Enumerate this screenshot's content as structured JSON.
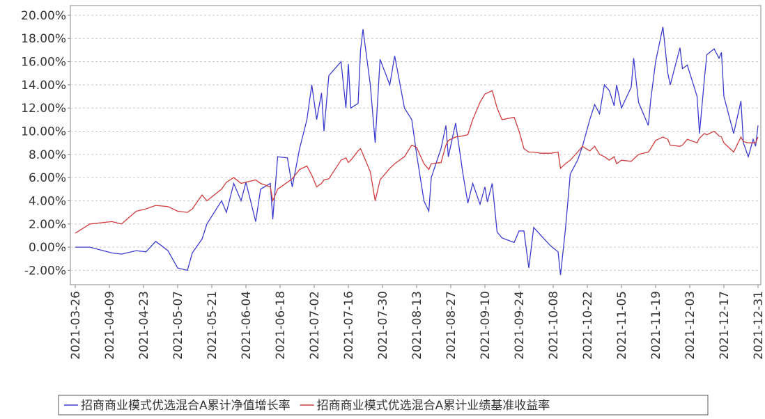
{
  "chart_data": {
    "type": "line",
    "x": [
      "2021-03-26",
      "2021-04-01",
      "2021-04-10",
      "2021-04-14",
      "2021-04-20",
      "2021-04-24",
      "2021-04-28",
      "2021-05-03",
      "2021-05-07",
      "2021-05-11",
      "2021-05-13",
      "2021-05-17",
      "2021-05-19",
      "2021-05-25",
      "2021-05-27",
      "2021-05-30",
      "2021-06-02",
      "2021-06-04",
      "2021-06-08",
      "2021-06-10",
      "2021-06-14",
      "2021-06-15",
      "2021-06-17",
      "2021-06-21",
      "2021-06-23",
      "2021-06-26",
      "2021-06-29",
      "2021-07-01",
      "2021-07-03",
      "2021-07-05",
      "2021-07-06",
      "2021-07-08",
      "2021-07-13",
      "2021-07-15",
      "2021-07-16",
      "2021-07-17",
      "2021-07-20",
      "2021-07-21",
      "2021-07-22",
      "2021-07-25",
      "2021-07-27",
      "2021-07-29",
      "2021-08-02",
      "2021-08-04",
      "2021-08-08",
      "2021-08-11",
      "2021-08-13",
      "2021-08-16",
      "2021-08-18",
      "2021-08-19",
      "2021-08-23",
      "2021-08-25",
      "2021-08-26",
      "2021-08-29",
      "2021-09-01",
      "2021-09-03",
      "2021-09-05",
      "2021-09-08",
      "2021-09-10",
      "2021-09-11",
      "2021-09-13",
      "2021-09-15",
      "2021-09-17",
      "2021-09-22",
      "2021-09-24",
      "2021-09-26",
      "2021-09-28",
      "2021-09-30",
      "2021-10-03",
      "2021-10-07",
      "2021-10-10",
      "2021-10-11",
      "2021-10-13",
      "2021-10-15",
      "2021-10-18",
      "2021-10-20",
      "2021-10-23",
      "2021-10-25",
      "2021-10-27",
      "2021-10-29",
      "2021-10-31",
      "2021-11-02",
      "2021-11-03",
      "2021-11-05",
      "2021-11-09",
      "2021-11-10",
      "2021-11-12",
      "2021-11-16",
      "2021-11-17",
      "2021-11-19",
      "2021-11-22",
      "2021-11-24",
      "2021-11-25",
      "2021-11-29",
      "2021-11-30",
      "2021-12-02",
      "2021-12-06",
      "2021-12-07",
      "2021-12-09",
      "2021-12-10",
      "2021-12-13",
      "2021-12-15",
      "2021-12-16",
      "2021-12-17",
      "2021-12-21",
      "2021-12-24",
      "2021-12-25",
      "2021-12-27",
      "2021-12-29",
      "2021-12-30",
      "2021-12-31"
    ],
    "series": [
      {
        "name": "招商商业模式优选混合A累计净值增长率",
        "color": "#3b3bd0",
        "values": [
          0,
          0,
          -0.5,
          -0.6,
          -0.3,
          -0.4,
          0.5,
          -0.3,
          -1.8,
          -2.0,
          -0.5,
          0.7,
          2.0,
          4.0,
          3.0,
          5.5,
          4.0,
          5.6,
          2.2,
          5.0,
          5.5,
          2.4,
          7.8,
          7.7,
          5.2,
          8.5,
          11,
          14,
          11,
          13.3,
          10,
          14.8,
          16,
          12,
          15.8,
          12,
          12.4,
          17,
          18.8,
          14,
          9,
          16.2,
          14,
          16.5,
          12,
          11,
          8,
          4,
          3.1,
          6,
          8.5,
          10.5,
          7.8,
          10.7,
          6.3,
          3.8,
          5.5,
          3.7,
          5.2,
          3.9,
          5.5,
          1.3,
          0.8,
          0.4,
          1.4,
          1.4,
          -1.8,
          1.7,
          1.0,
          0.1,
          -0.4,
          -2.4,
          1.5,
          6.3,
          7.5,
          8.7,
          11,
          12.3,
          11.5,
          14,
          13.5,
          12.2,
          14,
          12,
          13.8,
          16.3,
          12.5,
          10.5,
          12.7,
          16,
          19,
          15,
          14,
          17.2,
          15.4,
          15.7,
          13,
          9.8,
          14.5,
          16.6,
          17.1,
          16.3,
          16.8,
          13,
          9.8,
          12.6,
          9,
          7.8,
          9.3,
          8.7,
          10.5
        ]
      },
      {
        "name": "招商商业模式优选混合A累计业绩基准收益率",
        "color": "#d03b3b",
        "values": [
          1.2,
          2.0,
          2.2,
          2.0,
          3.1,
          3.3,
          3.6,
          3.5,
          3.1,
          3.0,
          3.3,
          4.5,
          4.0,
          5.0,
          5.6,
          6.0,
          5.5,
          5.6,
          5.8,
          5.5,
          5.2,
          4.0,
          5.0,
          5.6,
          5.9,
          6.7,
          7.0,
          6.2,
          5.2,
          5.5,
          5.8,
          5.9,
          7.5,
          7.7,
          7.3,
          7.5,
          8.3,
          8.5,
          8.0,
          6.5,
          4.0,
          5.8,
          6.8,
          7.2,
          7.8,
          8.8,
          8.6,
          7.2,
          6.7,
          7.2,
          7.3,
          8.8,
          9.2,
          9.5,
          9.6,
          9.7,
          11,
          12.5,
          13.2,
          13.3,
          13.5,
          12.0,
          11.0,
          11.2,
          10.0,
          8.5,
          8.2,
          8.2,
          8.1,
          8.1,
          8.2,
          6.8,
          7.2,
          7.5,
          8.2,
          8.7,
          8.3,
          8.7,
          8.0,
          7.8,
          7.5,
          7.8,
          7.2,
          7.5,
          7.4,
          7.6,
          8.0,
          8.2,
          8.5,
          9.2,
          9.5,
          9.3,
          8.8,
          8.7,
          8.8,
          9.3,
          9.0,
          9.4,
          9.8,
          9.7,
          10.0,
          9.6,
          9.5,
          9.0,
          8.2,
          9.5,
          9.1,
          9.0,
          9.0,
          9.0,
          9.5
        ]
      }
    ],
    "xlim": [
      "2021-03-26",
      "2021-12-31"
    ],
    "xticks": [
      "2021-03-26",
      "2021-04-09",
      "2021-04-23",
      "2021-05-07",
      "2021-05-21",
      "2021-06-04",
      "2021-06-18",
      "2021-07-02",
      "2021-07-16",
      "2021-07-30",
      "2021-08-13",
      "2021-08-27",
      "2021-09-10",
      "2021-09-24",
      "2021-10-08",
      "2021-10-22",
      "2021-11-05",
      "2021-11-19",
      "2021-12-03",
      "2021-12-17",
      "2021-12-31"
    ],
    "ylim": [
      -3.2,
      20.8
    ],
    "yticks": [
      {
        "value": -2,
        "label": "-2.00%"
      },
      {
        "value": 0,
        "label": "0.00%"
      },
      {
        "value": 2,
        "label": "2.00%"
      },
      {
        "value": 4,
        "label": "4.00%"
      },
      {
        "value": 6,
        "label": "6.00%"
      },
      {
        "value": 8,
        "label": "8.00%"
      },
      {
        "value": 10,
        "label": "10.00%"
      },
      {
        "value": 12,
        "label": "12.00%"
      },
      {
        "value": 14,
        "label": "14.00%"
      },
      {
        "value": 16,
        "label": "16.00%"
      },
      {
        "value": 18,
        "label": "18.00%"
      },
      {
        "value": 20,
        "label": "20.00%"
      }
    ],
    "grid": true,
    "legend": "bottom"
  }
}
